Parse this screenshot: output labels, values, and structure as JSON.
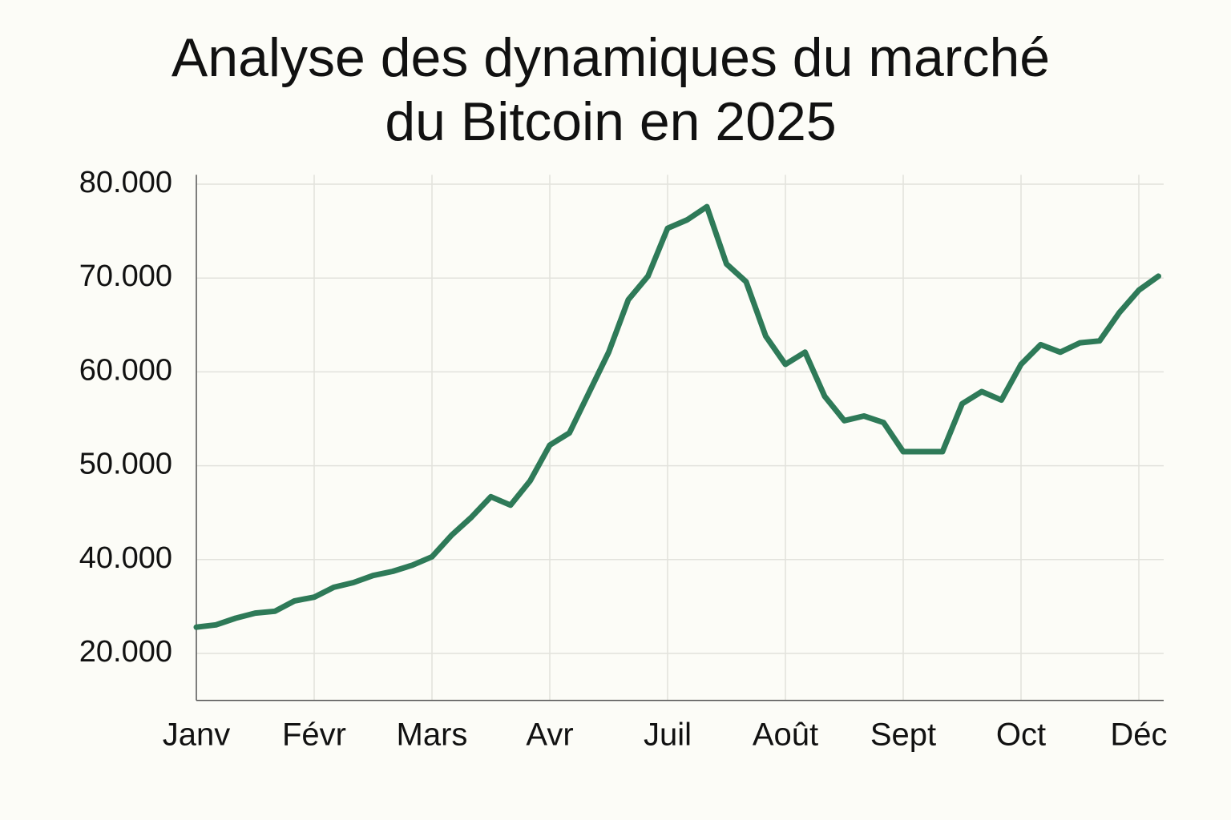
{
  "chart_data": {
    "type": "line",
    "title": "Analyse des dynamiques du marché du Bitcoin en 2025",
    "categories": [
      "Janv",
      null,
      null,
      null,
      null,
      null,
      "Févr",
      null,
      null,
      null,
      null,
      null,
      "Mars",
      null,
      null,
      null,
      null,
      null,
      "Avr",
      null,
      null,
      null,
      null,
      null,
      "Juil",
      null,
      null,
      null,
      null,
      null,
      "Août",
      null,
      null,
      null,
      null,
      null,
      "Sept",
      null,
      null,
      null,
      null,
      null,
      "Oct",
      null,
      null,
      null,
      null,
      null,
      "Déc",
      null
    ],
    "values": [
      25600,
      26100,
      27500,
      28600,
      29000,
      31200,
      32000,
      34100,
      35100,
      36600,
      37500,
      38800,
      40300,
      42600,
      44500,
      46700,
      45800,
      48400,
      52200,
      53500,
      57800,
      62100,
      67700,
      70200,
      75300,
      76200,
      77600,
      71500,
      69600,
      63800,
      60800,
      62100,
      57400,
      54800,
      55300,
      54600,
      51500,
      51500,
      51500,
      56600,
      57900,
      57000,
      60800,
      62900,
      62100,
      63100,
      63300,
      66300,
      68700,
      70200
    ],
    "color": "#2e7a58",
    "ylim": [
      10000,
      81000
    ],
    "yticks": [
      {
        "value": 20000,
        "label": "20.000"
      },
      {
        "value": 40000,
        "label": "40.000"
      },
      {
        "value": 50000,
        "label": "50.000"
      },
      {
        "value": 60000,
        "label": "60.000"
      },
      {
        "value": 70000,
        "label": "70.000"
      },
      {
        "value": 80000,
        "label": "80.000"
      }
    ],
    "grid": true
  }
}
